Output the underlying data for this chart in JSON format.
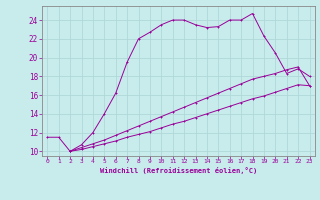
{
  "xlabel": "Windchill (Refroidissement éolien,°C)",
  "bg_color": "#c8ecec",
  "grid_color": "#aadddd",
  "line_color": "#990099",
  "spine_color": "#888888",
  "xlim": [
    -0.5,
    23.5
  ],
  "ylim": [
    9.5,
    25.5
  ],
  "yticks": [
    10,
    12,
    14,
    16,
    18,
    20,
    22,
    24
  ],
  "xticks": [
    0,
    1,
    2,
    3,
    4,
    5,
    6,
    7,
    8,
    9,
    10,
    11,
    12,
    13,
    14,
    15,
    16,
    17,
    18,
    19,
    20,
    21,
    22,
    23
  ],
  "line1_x": [
    0,
    1,
    2,
    3,
    4,
    5,
    6,
    7,
    8,
    9,
    10,
    11,
    12,
    13,
    14,
    15,
    16,
    17,
    18,
    19,
    20,
    21,
    22,
    23
  ],
  "line1_y": [
    11.5,
    11.5,
    10.0,
    10.7,
    12.0,
    14.0,
    16.2,
    19.5,
    22.0,
    22.7,
    23.5,
    24.0,
    24.0,
    23.5,
    23.2,
    23.3,
    24.0,
    24.0,
    24.7,
    22.3,
    20.5,
    18.3,
    18.8,
    18.0
  ],
  "line2_x": [
    2,
    3,
    4,
    5,
    6,
    7,
    8,
    9,
    10,
    11,
    12,
    13,
    14,
    15,
    16,
    17,
    18,
    19,
    20,
    21,
    22,
    23
  ],
  "line2_y": [
    10.0,
    10.4,
    10.8,
    11.2,
    11.7,
    12.2,
    12.7,
    13.2,
    13.7,
    14.2,
    14.7,
    15.2,
    15.7,
    16.2,
    16.7,
    17.2,
    17.7,
    18.0,
    18.3,
    18.7,
    19.0,
    17.0
  ],
  "line3_x": [
    2,
    3,
    4,
    5,
    6,
    7,
    8,
    9,
    10,
    11,
    12,
    13,
    14,
    15,
    16,
    17,
    18,
    19,
    20,
    21,
    22,
    23
  ],
  "line3_y": [
    10.0,
    10.2,
    10.5,
    10.8,
    11.1,
    11.5,
    11.8,
    12.1,
    12.5,
    12.9,
    13.2,
    13.6,
    14.0,
    14.4,
    14.8,
    15.2,
    15.6,
    15.9,
    16.3,
    16.7,
    17.1,
    17.0
  ]
}
